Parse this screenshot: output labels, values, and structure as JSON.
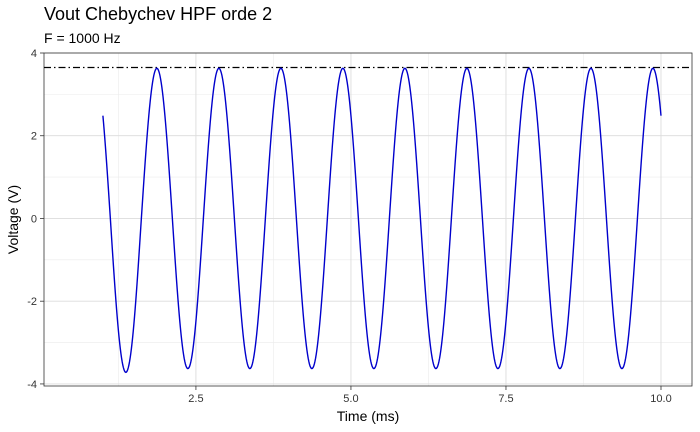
{
  "chart_data": {
    "type": "line",
    "title": "Vout Chebychev HPF orde 2",
    "subtitle": "F = 1000 Hz",
    "xlabel": "Time (ms)",
    "ylabel": "Voltage (V)",
    "xlim": [
      0.05,
      10.5
    ],
    "ylim": [
      -4.05,
      4.0
    ],
    "x_ticks": [
      2.5,
      5.0,
      7.5,
      10.0
    ],
    "x_tick_labels": [
      "2.5",
      "5.0",
      "7.5",
      "10.0"
    ],
    "y_ticks": [
      -4,
      -2,
      0,
      2,
      4
    ],
    "y_tick_labels": [
      "-4",
      "-2",
      "0",
      "2",
      "4"
    ],
    "grid": true,
    "series": [
      {
        "color": "#0000cc",
        "signal": {
          "x_start": 1.0,
          "x_end": 10.0,
          "frequency_khz": 1.0,
          "amplitude": 3.63,
          "first_peak_x": 1.87,
          "first_trough": -3.72
        }
      }
    ],
    "reference_line": {
      "y": 3.65,
      "style": "dash-dot",
      "color": "#000000"
    }
  }
}
